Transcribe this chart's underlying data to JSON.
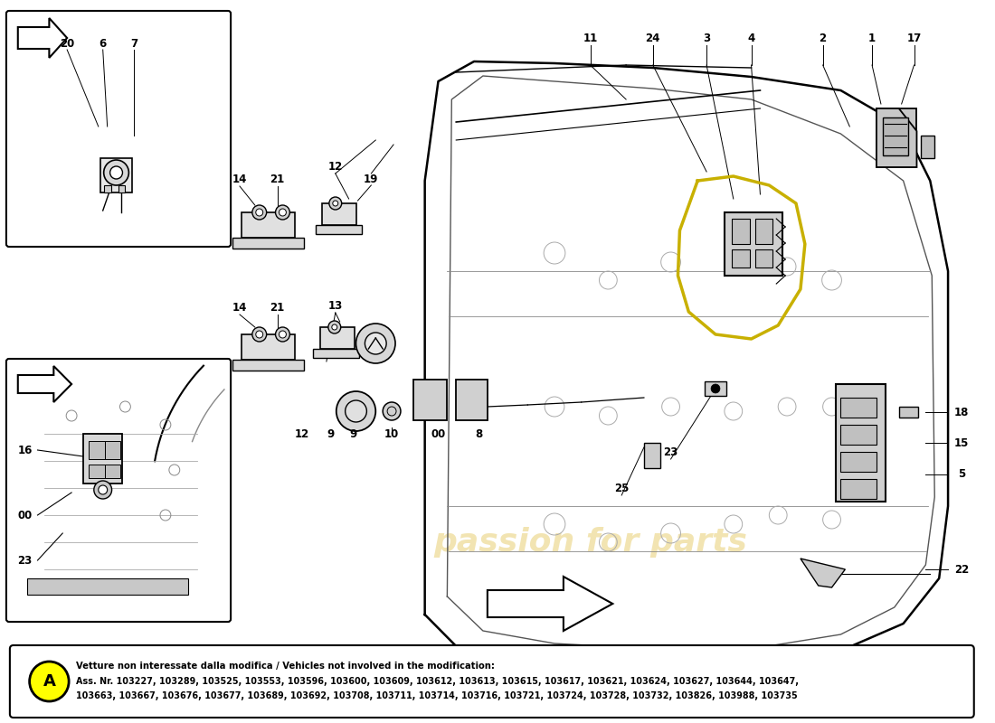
{
  "background_color": "#ffffff",
  "note_label": "A",
  "note_circle_color": "#ffff00",
  "note_text_bold": "Vetture non interessate dalla modifica / Vehicles not involved in the modification:",
  "note_text_line1": "Ass. Nr. 103227, 103289, 103525, 103553, 103596, 103600, 103609, 103612, 103613, 103615, 103617, 103621, 103624, 103627, 103644, 103647,",
  "note_text_line2": "103663, 103667, 103676, 103677, 103689, 103692, 103708, 103711, 103714, 103716, 103721, 103724, 103728, 103732, 103826, 103988, 103735",
  "watermark_color": "#d4a800",
  "watermark_alpha": 0.3,
  "label_fontsize": 8.5,
  "note_fontsize": 7.2
}
